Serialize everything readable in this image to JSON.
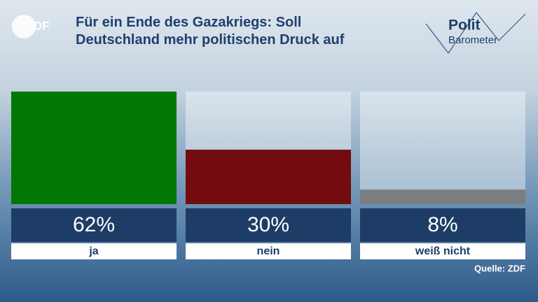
{
  "chart_data": {
    "type": "bar",
    "title": "Für ein Ende des Gazakriegs: Soll Deutschland mehr politischen Druck auf",
    "categories": [
      "ja",
      "nein",
      "weiß nicht"
    ],
    "values": [
      62,
      30,
      8
    ],
    "value_labels": [
      "62%",
      "30%",
      "8%"
    ],
    "colors": [
      "#037703",
      "#730c0e",
      "#7b7d80"
    ],
    "source": "Quelle: ZDF"
  },
  "logos": {
    "broadcaster": "ZDF",
    "show_line1": "Polit",
    "show_line2": "Barometer"
  }
}
